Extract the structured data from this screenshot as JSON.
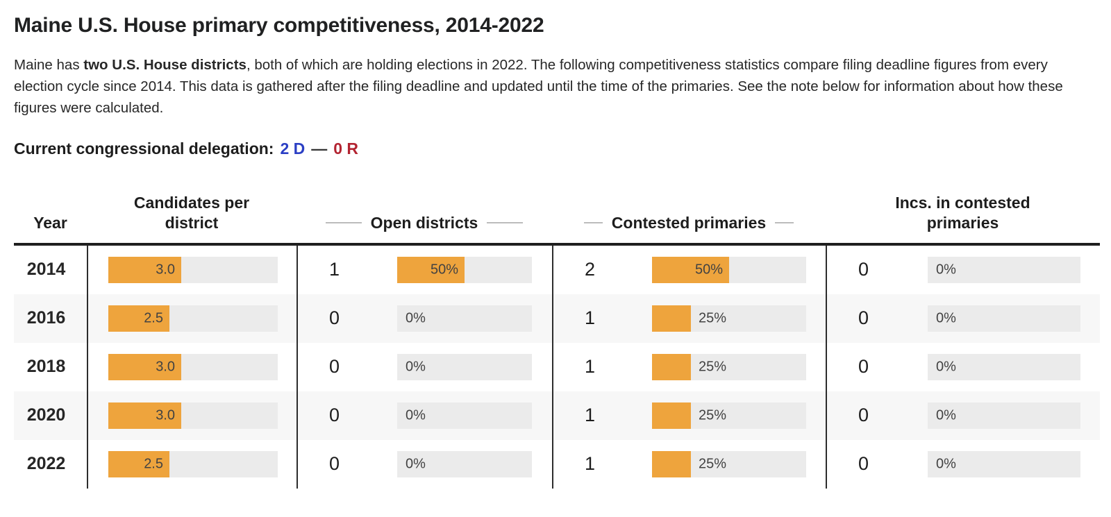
{
  "page": {
    "title": "Maine U.S. House primary competitiveness, 2014-2022",
    "intro": {
      "pre": "Maine has ",
      "bold": "two U.S. House districts",
      "post": ", both of which are holding elections in 2022. The following competitiveness statistics compare filing deadline figures from every election cycle since 2014. This data is gathered after the filing deadline and updated until the time of the primaries. See the note below for information about how these figures were calculated."
    },
    "delegation": {
      "label": "Current congressional delegation:",
      "dem": "2 D",
      "separator": "—",
      "rep": "0 R"
    }
  },
  "colors": {
    "bar_fill": "#eea43d",
    "bar_track": "#ebebeb",
    "row_stripe": "#f7f7f7",
    "democrat_blue": "#2b3fc4",
    "republican_red": "#b32431"
  },
  "table": {
    "headers": {
      "year": "Year",
      "candidates": "Candidates per district",
      "open": "Open districts",
      "contested": "Contested primaries",
      "incs": "Incs. in contested primaries"
    },
    "rows": [
      {
        "year": "2014",
        "candidates": {
          "label": "3.0",
          "frac": 0.43
        },
        "open": {
          "count": "1",
          "label": "50%",
          "frac": 0.5
        },
        "contested": {
          "count": "2",
          "label": "50%",
          "frac": 0.5
        },
        "incs": {
          "count": "0",
          "label": "0%",
          "frac": 0
        }
      },
      {
        "year": "2016",
        "candidates": {
          "label": "2.5",
          "frac": 0.36
        },
        "open": {
          "count": "0",
          "label": "0%",
          "frac": 0
        },
        "contested": {
          "count": "1",
          "label": "25%",
          "frac": 0.25
        },
        "incs": {
          "count": "0",
          "label": "0%",
          "frac": 0
        }
      },
      {
        "year": "2018",
        "candidates": {
          "label": "3.0",
          "frac": 0.43
        },
        "open": {
          "count": "0",
          "label": "0%",
          "frac": 0
        },
        "contested": {
          "count": "1",
          "label": "25%",
          "frac": 0.25
        },
        "incs": {
          "count": "0",
          "label": "0%",
          "frac": 0
        }
      },
      {
        "year": "2020",
        "candidates": {
          "label": "3.0",
          "frac": 0.43
        },
        "open": {
          "count": "0",
          "label": "0%",
          "frac": 0
        },
        "contested": {
          "count": "1",
          "label": "25%",
          "frac": 0.25
        },
        "incs": {
          "count": "0",
          "label": "0%",
          "frac": 0
        }
      },
      {
        "year": "2022",
        "candidates": {
          "label": "2.5",
          "frac": 0.36
        },
        "open": {
          "count": "0",
          "label": "0%",
          "frac": 0
        },
        "contested": {
          "count": "1",
          "label": "25%",
          "frac": 0.25
        },
        "incs": {
          "count": "0",
          "label": "0%",
          "frac": 0
        }
      }
    ]
  },
  "chart_data": {
    "type": "bar",
    "title": "Maine U.S. House primary competitiveness, 2014-2022",
    "orientation": "horizontal",
    "categories": [
      "2014",
      "2016",
      "2018",
      "2020",
      "2022"
    ],
    "series": [
      {
        "name": "Candidates per district",
        "values": [
          3.0,
          2.5,
          3.0,
          3.0,
          2.5
        ]
      },
      {
        "name": "Open districts (count)",
        "values": [
          1,
          0,
          0,
          0,
          0
        ]
      },
      {
        "name": "Open districts (%)",
        "values": [
          50,
          0,
          0,
          0,
          0
        ]
      },
      {
        "name": "Contested primaries (count)",
        "values": [
          2,
          1,
          1,
          1,
          1
        ]
      },
      {
        "name": "Contested primaries (%)",
        "values": [
          50,
          25,
          25,
          25,
          25
        ]
      },
      {
        "name": "Incs. in contested primaries (count)",
        "values": [
          0,
          0,
          0,
          0,
          0
        ]
      },
      {
        "name": "Incs. in contested primaries (%)",
        "values": [
          0,
          0,
          0,
          0,
          0
        ]
      }
    ],
    "layout": "bars embedded per table row on gray tracks with orange fill; value labels inside or beside fill"
  }
}
